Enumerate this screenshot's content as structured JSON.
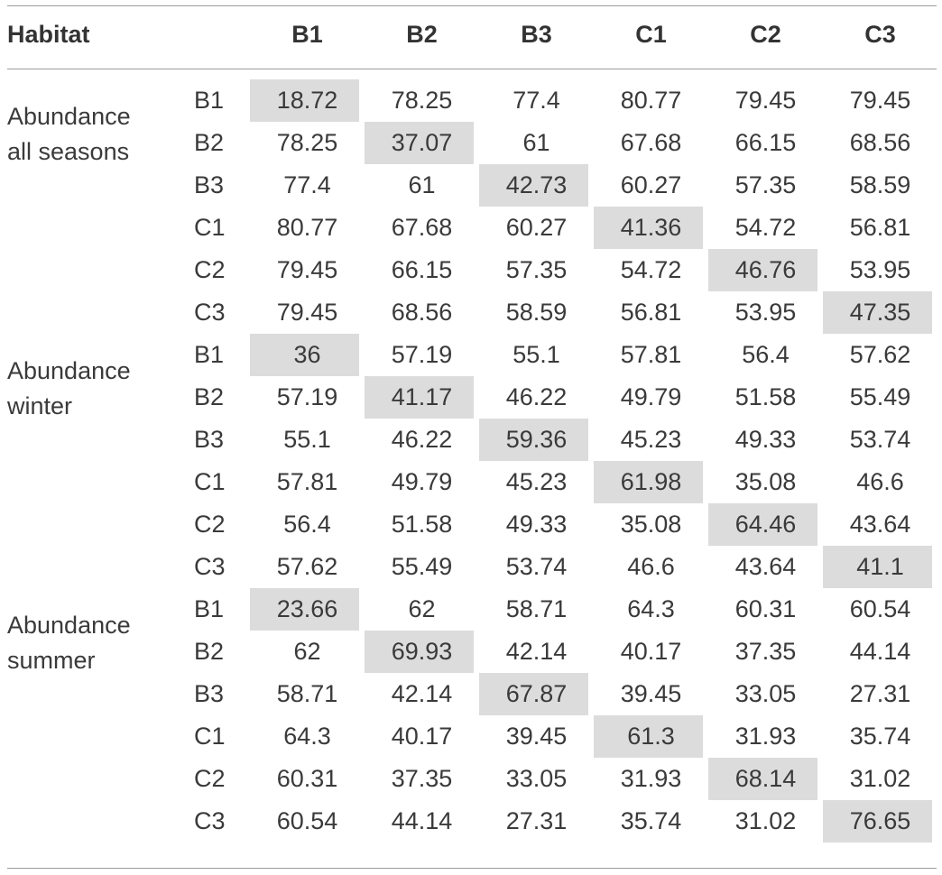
{
  "header": {
    "habitat_label": "Habitat",
    "columns": [
      "B1",
      "B2",
      "B3",
      "C1",
      "C2",
      "C3"
    ]
  },
  "groups": [
    {
      "name_line1": "Abundance",
      "name_line2": "all seasons",
      "rows": [
        {
          "label": "B1",
          "values": [
            "18.72",
            "78.25",
            "77.4",
            "80.77",
            "79.45",
            "79.45"
          ]
        },
        {
          "label": "B2",
          "values": [
            "78.25",
            "37.07",
            "61",
            "67.68",
            "66.15",
            "68.56"
          ]
        },
        {
          "label": "B3",
          "values": [
            "77.4",
            "61",
            "42.73",
            "60.27",
            "57.35",
            "58.59"
          ]
        },
        {
          "label": "C1",
          "values": [
            "80.77",
            "67.68",
            "60.27",
            "41.36",
            "54.72",
            "56.81"
          ]
        },
        {
          "label": "C2",
          "values": [
            "79.45",
            "66.15",
            "57.35",
            "54.72",
            "46.76",
            "53.95"
          ]
        },
        {
          "label": "C3",
          "values": [
            "79.45",
            "68.56",
            "58.59",
            "56.81",
            "53.95",
            "47.35"
          ]
        }
      ]
    },
    {
      "name_line1": "Abundance",
      "name_line2": "winter",
      "rows": [
        {
          "label": "B1",
          "values": [
            "36",
            "57.19",
            "55.1",
            "57.81",
            "56.4",
            "57.62"
          ]
        },
        {
          "label": "B2",
          "values": [
            "57.19",
            "41.17",
            "46.22",
            "49.79",
            "51.58",
            "55.49"
          ]
        },
        {
          "label": "B3",
          "values": [
            "55.1",
            "46.22",
            "59.36",
            "45.23",
            "49.33",
            "53.74"
          ]
        },
        {
          "label": "C1",
          "values": [
            "57.81",
            "49.79",
            "45.23",
            "61.98",
            "35.08",
            "46.6"
          ]
        },
        {
          "label": "C2",
          "values": [
            "56.4",
            "51.58",
            "49.33",
            "35.08",
            "64.46",
            "43.64"
          ]
        },
        {
          "label": "C3",
          "values": [
            "57.62",
            "55.49",
            "53.74",
            "46.6",
            "43.64",
            "41.1"
          ]
        }
      ]
    },
    {
      "name_line1": "Abundance",
      "name_line2": "summer",
      "rows": [
        {
          "label": "B1",
          "values": [
            "23.66",
            "62",
            "58.71",
            "64.3",
            "60.31",
            "60.54"
          ]
        },
        {
          "label": "B2",
          "values": [
            "62",
            "69.93",
            "42.14",
            "40.17",
            "37.35",
            "44.14"
          ]
        },
        {
          "label": "B3",
          "values": [
            "58.71",
            "42.14",
            "67.87",
            "39.45",
            "33.05",
            "27.31"
          ]
        },
        {
          "label": "C1",
          "values": [
            "64.3",
            "40.17",
            "39.45",
            "61.3",
            "31.93",
            "35.74"
          ]
        },
        {
          "label": "C2",
          "values": [
            "60.31",
            "37.35",
            "33.05",
            "31.93",
            "68.14",
            "31.02"
          ]
        },
        {
          "label": "C3",
          "values": [
            "60.54",
            "44.14",
            "27.31",
            "35.74",
            "31.02",
            "76.65"
          ]
        }
      ]
    }
  ],
  "highlight_color": "#dcdcdc"
}
